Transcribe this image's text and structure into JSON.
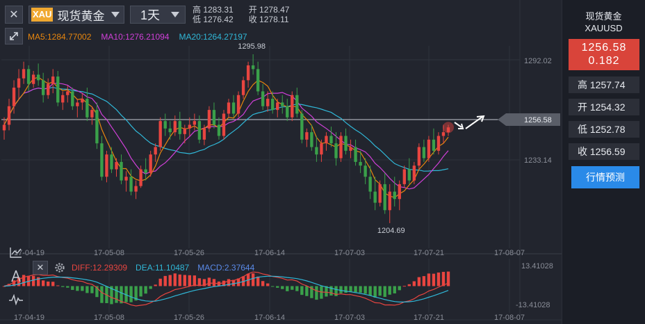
{
  "header": {
    "symbol_code": "XAU",
    "symbol_name": "现货黄金",
    "period": "1天",
    "ohlc": {
      "high": "高 1283.31",
      "open": "开 1278.47",
      "low": "低 1276.42",
      "close": "收 1278.11"
    }
  },
  "ma_legend": {
    "ma5": "MA5:1284.77002",
    "ma10": "MA10:1276.21094",
    "ma20": "MA20:1264.27197"
  },
  "macd_legend": {
    "diff": "DIFF:12.29309",
    "dea": "DEA:11.10487",
    "macd": "MACD:2.37644"
  },
  "right_panel": {
    "title": "现货黄金",
    "subtitle": "XAUUSD",
    "price": "1256.58",
    "change": "0.182",
    "high": "高 1257.74",
    "open": "开 1254.32",
    "low": "低 1252.78",
    "close": "收 1256.59",
    "forecast_button": "行情预测"
  },
  "colors": {
    "up": "#e84540",
    "down": "#3aa04a",
    "ma5": "#e8860e",
    "ma10": "#d040d8",
    "ma20": "#30b8d8",
    "diff": "#e84540",
    "dea": "#30b8d8",
    "macd": "#5a8ae8"
  },
  "chart_data": {
    "type": "candlestick",
    "price_axis_labels": [
      "1292.02",
      "1256.58",
      "1233.14"
    ],
    "annotations": {
      "high_label": "1295.98",
      "low_label": "1204.69",
      "current_price": "1256.58"
    },
    "date_labels": [
      "17-04-19",
      "17-05-08",
      "17-05-26",
      "17-06-14",
      "17-07-03",
      "17-07-21",
      "17-08-07"
    ],
    "macd_axis_labels": [
      "13.41028",
      "-13.41028"
    ],
    "candles": [
      [
        1255,
        1262,
        1250,
        1258
      ],
      [
        1258,
        1272,
        1255,
        1268
      ],
      [
        1268,
        1282,
        1264,
        1278
      ],
      [
        1278,
        1288,
        1272,
        1283
      ],
      [
        1283,
        1292,
        1280,
        1288
      ],
      [
        1288,
        1290,
        1276,
        1280
      ],
      [
        1280,
        1287,
        1278,
        1285
      ],
      [
        1285,
        1291,
        1279,
        1282
      ],
      [
        1282,
        1286,
        1270,
        1274
      ],
      [
        1274,
        1283,
        1272,
        1280
      ],
      [
        1280,
        1288,
        1275,
        1284
      ],
      [
        1284,
        1287,
        1268,
        1270
      ],
      [
        1270,
        1276,
        1266,
        1274
      ],
      [
        1274,
        1279,
        1270,
        1276
      ],
      [
        1276,
        1278,
        1266,
        1268
      ],
      [
        1268,
        1272,
        1262,
        1270
      ],
      [
        1270,
        1275,
        1266,
        1272
      ],
      [
        1272,
        1278,
        1260,
        1262
      ],
      [
        1262,
        1268,
        1258,
        1266
      ],
      [
        1266,
        1270,
        1245,
        1248
      ],
      [
        1248,
        1252,
        1228,
        1230
      ],
      [
        1230,
        1244,
        1227,
        1242
      ],
      [
        1242,
        1246,
        1232,
        1234
      ],
      [
        1234,
        1240,
        1230,
        1238
      ],
      [
        1238,
        1242,
        1226,
        1228
      ],
      [
        1228,
        1233,
        1222,
        1230
      ],
      [
        1230,
        1234,
        1220,
        1222
      ],
      [
        1222,
        1228,
        1218,
        1225
      ],
      [
        1225,
        1236,
        1224,
        1234
      ],
      [
        1234,
        1240,
        1228,
        1232
      ],
      [
        1232,
        1244,
        1230,
        1242
      ],
      [
        1242,
        1248,
        1238,
        1246
      ],
      [
        1246,
        1262,
        1244,
        1260
      ],
      [
        1260,
        1264,
        1252,
        1256
      ],
      [
        1256,
        1260,
        1250,
        1254
      ],
      [
        1254,
        1263,
        1252,
        1260
      ],
      [
        1260,
        1265,
        1250,
        1253
      ],
      [
        1253,
        1258,
        1248,
        1256
      ],
      [
        1256,
        1262,
        1252,
        1258
      ],
      [
        1258,
        1264,
        1255,
        1260
      ],
      [
        1260,
        1263,
        1248,
        1250
      ],
      [
        1250,
        1258,
        1247,
        1256
      ],
      [
        1256,
        1268,
        1254,
        1266
      ],
      [
        1266,
        1270,
        1256,
        1258
      ],
      [
        1258,
        1262,
        1250,
        1252
      ],
      [
        1252,
        1266,
        1250,
        1264
      ],
      [
        1264,
        1272,
        1262,
        1270
      ],
      [
        1270,
        1274,
        1262,
        1264
      ],
      [
        1264,
        1276,
        1262,
        1274
      ],
      [
        1274,
        1284,
        1272,
        1282
      ],
      [
        1282,
        1292,
        1278,
        1290
      ],
      [
        1290,
        1296,
        1285,
        1288
      ],
      [
        1288,
        1292,
        1274,
        1276
      ],
      [
        1276,
        1280,
        1266,
        1268
      ],
      [
        1268,
        1276,
        1265,
        1272
      ],
      [
        1272,
        1276,
        1264,
        1266
      ],
      [
        1266,
        1272,
        1262,
        1270
      ],
      [
        1270,
        1274,
        1264,
        1268
      ],
      [
        1268,
        1272,
        1260,
        1262
      ],
      [
        1262,
        1276,
        1260,
        1274
      ],
      [
        1274,
        1278,
        1262,
        1264
      ],
      [
        1264,
        1266,
        1248,
        1250
      ],
      [
        1250,
        1256,
        1246,
        1254
      ],
      [
        1254,
        1258,
        1244,
        1246
      ],
      [
        1246,
        1252,
        1238,
        1242
      ],
      [
        1242,
        1250,
        1238,
        1248
      ],
      [
        1248,
        1254,
        1244,
        1252
      ],
      [
        1252,
        1257,
        1246,
        1248
      ],
      [
        1248,
        1254,
        1236,
        1240
      ],
      [
        1240,
        1254,
        1238,
        1252
      ],
      [
        1252,
        1256,
        1242,
        1244
      ],
      [
        1244,
        1250,
        1240,
        1246
      ],
      [
        1246,
        1250,
        1236,
        1238
      ],
      [
        1238,
        1244,
        1232,
        1236
      ],
      [
        1236,
        1240,
        1226,
        1230
      ],
      [
        1230,
        1236,
        1218,
        1222
      ],
      [
        1222,
        1230,
        1212,
        1216
      ],
      [
        1216,
        1228,
        1214,
        1226
      ],
      [
        1226,
        1232,
        1210,
        1212
      ],
      [
        1212,
        1226,
        1205,
        1222
      ],
      [
        1222,
        1230,
        1214,
        1218
      ],
      [
        1218,
        1228,
        1212,
        1226
      ],
      [
        1226,
        1236,
        1224,
        1234
      ],
      [
        1234,
        1240,
        1226,
        1228
      ],
      [
        1228,
        1238,
        1226,
        1236
      ],
      [
        1236,
        1248,
        1234,
        1246
      ],
      [
        1246,
        1250,
        1238,
        1240
      ],
      [
        1240,
        1252,
        1238,
        1250
      ],
      [
        1250,
        1256,
        1242,
        1244
      ],
      [
        1244,
        1254,
        1242,
        1252
      ],
      [
        1252,
        1258,
        1248,
        1254
      ],
      [
        1254,
        1258,
        1252,
        1256.6
      ]
    ]
  }
}
